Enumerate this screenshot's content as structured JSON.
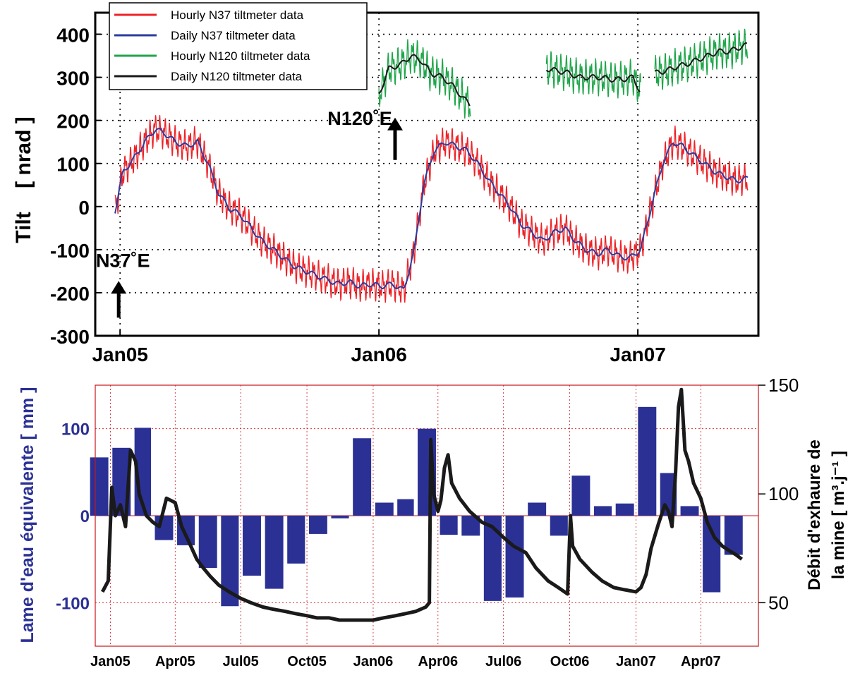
{
  "chart_data": [
    {
      "type": "line",
      "ylabel": "Tilt    [ nrad ]",
      "ylim": [
        -300,
        450
      ],
      "yticks": [
        -300,
        -200,
        -100,
        0,
        100,
        200,
        300,
        400
      ],
      "xticks": [
        "Jan05",
        "Jan06",
        "Jan07"
      ],
      "grid": true,
      "legend_position": "top-left",
      "series": [
        {
          "name": "Hourly N37 tiltmeter data",
          "color": "#ee2227",
          "x": [
            "2004-12-25",
            "2005-01-05",
            "2005-01-20",
            "2005-02-05",
            "2005-02-20",
            "2005-03-05",
            "2005-03-20",
            "2005-04-05",
            "2005-04-20",
            "2005-05-05",
            "2005-05-20",
            "2005-06-05",
            "2005-06-20",
            "2005-07-05",
            "2005-07-20",
            "2005-08-05",
            "2005-08-20",
            "2005-09-05",
            "2005-09-20",
            "2005-10-05",
            "2005-10-20",
            "2005-11-05",
            "2005-11-20",
            "2005-12-05",
            "2005-12-20",
            "2006-01-05",
            "2006-01-20",
            "2006-02-05",
            "2006-02-20",
            "2006-03-05",
            "2006-03-20",
            "2006-04-05",
            "2006-04-20",
            "2006-05-05",
            "2006-05-20",
            "2006-06-05",
            "2006-06-20",
            "2006-07-05",
            "2006-07-20",
            "2006-08-05",
            "2006-08-20",
            "2006-09-05",
            "2006-09-20",
            "2006-10-05",
            "2006-10-20",
            "2006-11-05",
            "2006-11-20",
            "2006-12-05",
            "2006-12-20",
            "2007-01-05",
            "2007-01-20",
            "2007-02-05",
            "2007-02-20",
            "2007-03-05",
            "2007-03-20",
            "2007-04-05",
            "2007-04-20",
            "2007-05-05",
            "2007-05-20",
            "2007-06-05"
          ],
          "values": [
            -10,
            80,
            110,
            150,
            180,
            170,
            150,
            140,
            150,
            100,
            30,
            -5,
            -20,
            -50,
            -80,
            -100,
            -120,
            -140,
            -150,
            -160,
            -170,
            -180,
            -175,
            -185,
            -180,
            -185,
            -180,
            -195,
            -100,
            50,
            130,
            150,
            140,
            130,
            100,
            60,
            30,
            0,
            -40,
            -60,
            -80,
            -60,
            -50,
            -80,
            -100,
            -110,
            -100,
            -115,
            -120,
            -100,
            0,
            100,
            150,
            140,
            120,
            100,
            80,
            70,
            60,
            65
          ]
        },
        {
          "name": "Daily N37 tiltmeter data",
          "color": "#2b3c9e",
          "x": [
            "2004-12-25",
            "2005-01-05",
            "2005-01-20",
            "2005-02-05",
            "2005-02-20",
            "2005-03-05",
            "2005-03-20",
            "2005-04-05",
            "2005-04-20",
            "2005-05-05",
            "2005-05-20",
            "2005-06-05",
            "2005-06-20",
            "2005-07-05",
            "2005-07-20",
            "2005-08-05",
            "2005-08-20",
            "2005-09-05",
            "2005-09-20",
            "2005-10-05",
            "2005-10-20",
            "2005-11-05",
            "2005-11-20",
            "2005-12-05",
            "2005-12-20",
            "2006-01-05",
            "2006-01-20",
            "2006-02-05",
            "2006-02-20",
            "2006-03-05",
            "2006-03-20",
            "2006-04-05",
            "2006-04-20",
            "2006-05-05",
            "2006-05-20",
            "2006-06-05",
            "2006-06-20",
            "2006-07-05",
            "2006-07-20",
            "2006-08-05",
            "2006-08-20",
            "2006-09-05",
            "2006-09-20",
            "2006-10-05",
            "2006-10-20",
            "2006-11-05",
            "2006-11-20",
            "2006-12-05",
            "2006-12-20",
            "2007-01-05",
            "2007-01-20",
            "2007-02-05",
            "2007-02-20",
            "2007-03-05",
            "2007-03-20",
            "2007-04-05",
            "2007-04-20",
            "2007-05-05",
            "2007-05-20",
            "2007-06-05"
          ],
          "values": [
            -10,
            80,
            110,
            150,
            180,
            170,
            150,
            140,
            150,
            100,
            30,
            -5,
            -20,
            -50,
            -80,
            -100,
            -120,
            -140,
            -150,
            -160,
            -170,
            -180,
            -175,
            -185,
            -180,
            -185,
            -180,
            -195,
            -100,
            50,
            130,
            150,
            140,
            130,
            100,
            60,
            30,
            0,
            -40,
            -60,
            -80,
            -60,
            -50,
            -80,
            -100,
            -110,
            -100,
            -115,
            -120,
            -100,
            0,
            100,
            150,
            140,
            120,
            100,
            80,
            70,
            60,
            65
          ]
        },
        {
          "name": "Hourly N120 tiltmeter data",
          "color": "#1fa64a",
          "x": [
            "2006-01-01",
            "2006-01-15",
            "2006-02-01",
            "2006-02-15",
            "2006-03-01",
            "2006-03-15",
            "2006-04-01",
            "2006-04-15",
            "2006-05-01",
            "2006-05-10",
            null,
            "2006-08-25",
            "2006-09-10",
            "2006-09-25",
            "2006-10-10",
            "2006-10-25",
            "2006-11-10",
            "2006-11-25",
            "2006-12-10",
            "2006-12-25",
            "2007-01-05",
            null,
            "2007-01-25",
            "2007-02-10",
            "2007-02-25",
            "2007-03-10",
            "2007-03-25",
            "2007-04-10",
            "2007-04-25",
            "2007-05-10",
            "2007-05-25",
            "2007-06-05"
          ],
          "values": [
            260,
            320,
            330,
            350,
            340,
            310,
            300,
            280,
            250,
            235,
            null,
            320,
            315,
            310,
            300,
            300,
            300,
            295,
            295,
            300,
            265,
            null,
            310,
            315,
            325,
            330,
            340,
            350,
            360,
            360,
            370,
            375
          ]
        },
        {
          "name": "Daily N120 tiltmeter data",
          "color": "#1a1a1a",
          "x": [
            "2006-01-01",
            "2006-01-15",
            "2006-02-01",
            "2006-02-15",
            "2006-03-01",
            "2006-03-15",
            "2006-04-01",
            "2006-04-15",
            "2006-05-01",
            "2006-05-10",
            null,
            "2006-08-25",
            "2006-09-10",
            "2006-09-25",
            "2006-10-10",
            "2006-10-25",
            "2006-11-10",
            "2006-11-25",
            "2006-12-10",
            "2006-12-25",
            "2007-01-05",
            null,
            "2007-01-25",
            "2007-02-10",
            "2007-02-25",
            "2007-03-10",
            "2007-03-25",
            "2007-04-10",
            "2007-04-25",
            "2007-05-10",
            "2007-05-25",
            "2007-06-05"
          ],
          "values": [
            260,
            320,
            330,
            350,
            340,
            310,
            300,
            280,
            250,
            235,
            null,
            320,
            315,
            310,
            300,
            300,
            300,
            295,
            295,
            300,
            265,
            null,
            310,
            315,
            325,
            330,
            340,
            350,
            360,
            360,
            370,
            375
          ]
        }
      ],
      "annotations": [
        {
          "text": "N37˚E",
          "x": "2005-01-05",
          "y": -140
        },
        {
          "text": "N120˚E",
          "x": "2005-12-05",
          "y": 190
        }
      ]
    },
    {
      "type": "bar",
      "ylabel": "Lame d'eau équivalente [ mm ]",
      "y2label": "Débit d'exhaure de la mine [ m³.j⁻¹ ]",
      "ylim": [
        -150,
        150
      ],
      "y2lim": [
        30,
        150
      ],
      "yticks": [
        -100,
        0,
        100
      ],
      "y2ticks": [
        50,
        100,
        150
      ],
      "xticks": [
        "Jan05",
        "Apr05",
        "Jul05",
        "Oct05",
        "Jan06",
        "Apr06",
        "Jul06",
        "Oct06",
        "Jan07",
        "Apr07"
      ],
      "grid": true,
      "categories": [
        "Dec04",
        "Jan05",
        "Feb05",
        "Mar05",
        "Apr05",
        "May05",
        "Jun05",
        "Jul05",
        "Aug05",
        "Sep05",
        "Oct05",
        "Nov05",
        "Dec05",
        "Jan06",
        "Feb06",
        "Mar06",
        "Apr06",
        "May06",
        "Jun06",
        "Jul06",
        "Aug06",
        "Sep06",
        "Oct06",
        "Nov06",
        "Dec06",
        "Jan07",
        "Feb07",
        "Mar07",
        "Apr07",
        "May07"
      ],
      "series": [
        {
          "name": "",
          "color": "#2b3194",
          "values": [
            67,
            78,
            101,
            -28,
            -34,
            -60,
            -104,
            -69,
            -84,
            -55,
            -21,
            -3,
            89,
            15,
            19,
            100,
            -22,
            -23,
            -98,
            -94,
            15,
            -23,
            46,
            11,
            14,
            125,
            49,
            11,
            -88,
            -45
          ]
        },
        {
          "name": "",
          "type": "line",
          "axis": "right",
          "color": "#1a1a1a",
          "x": [
            "2004-12-21",
            "2004-12-29",
            "2005-01-03",
            "2005-01-08",
            "2005-01-15",
            "2005-01-22",
            "2005-01-29",
            "2005-02-05",
            "2005-02-10",
            "2005-02-20",
            "2005-03-01",
            "2005-03-10",
            "2005-03-20",
            "2005-04-01",
            "2005-04-10",
            "2005-04-20",
            "2005-05-01",
            "2005-05-10",
            "2005-05-20",
            "2005-06-01",
            "2005-06-15",
            "2005-07-01",
            "2005-07-15",
            "2005-08-01",
            "2005-08-15",
            "2005-09-01",
            "2005-09-15",
            "2005-10-01",
            "2005-10-15",
            "2005-11-01",
            "2005-11-15",
            "2005-12-01",
            "2005-12-15",
            "2006-01-01",
            "2006-01-15",
            "2006-02-01",
            "2006-02-15",
            "2006-03-01",
            "2006-03-15",
            "2006-03-20",
            "2006-03-22",
            "2006-03-26",
            "2006-04-01",
            "2006-04-05",
            "2006-04-10",
            "2006-04-15",
            "2006-04-20",
            "2006-05-01",
            "2006-05-15",
            "2006-06-01",
            "2006-06-15",
            "2006-07-01",
            "2006-07-15",
            "2006-08-01",
            "2006-08-15",
            "2006-09-01",
            "2006-09-15",
            "2006-09-28",
            "2006-10-02",
            "2006-10-05",
            "2006-10-15",
            "2006-11-01",
            "2006-11-15",
            "2006-12-01",
            "2006-12-15",
            "2007-01-01",
            "2007-01-08",
            "2007-01-15",
            "2007-01-22",
            "2007-02-01",
            "2007-02-10",
            "2007-02-15",
            "2007-02-20",
            "2007-02-25",
            "2007-03-01",
            "2007-03-05",
            "2007-03-10",
            "2007-03-15",
            "2007-03-22",
            "2007-04-01",
            "2007-04-10",
            "2007-04-20",
            "2007-05-01",
            "2007-05-10",
            "2007-05-20",
            "2007-05-28"
          ],
          "values": [
            55,
            60,
            103,
            90,
            95,
            85,
            120,
            115,
            100,
            90,
            87,
            85,
            98,
            96,
            85,
            78,
            70,
            66,
            62,
            58,
            55,
            52,
            50,
            48,
            47,
            46,
            45,
            44,
            43,
            43,
            42,
            42,
            42,
            42,
            43,
            44,
            45,
            46,
            48,
            50,
            125,
            100,
            92,
            97,
            112,
            118,
            105,
            98,
            92,
            87,
            85,
            80,
            76,
            73,
            66,
            60,
            57,
            54,
            90,
            76,
            70,
            64,
            60,
            57,
            56,
            55,
            57,
            63,
            75,
            86,
            95,
            92,
            85,
            110,
            140,
            148,
            120,
            115,
            105,
            98,
            87,
            80,
            76,
            74,
            72,
            70
          ]
        }
      ]
    }
  ]
}
